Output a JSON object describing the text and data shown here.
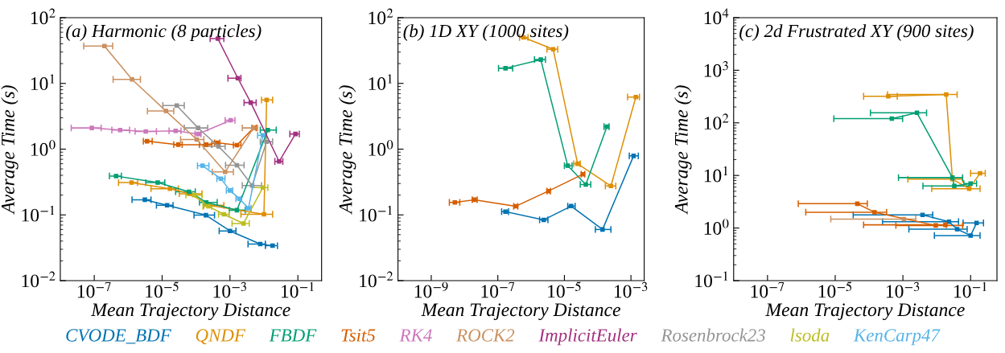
{
  "chart_data": [
    {
      "type": "line",
      "title": "(a) Harmonic (8 particles)",
      "xlabel": "Mean Trajectory Distance",
      "ylabel": "Average Time (s)",
      "log": "xy",
      "marker": "square",
      "line_style": "solid",
      "grid": false,
      "legend": "bottom",
      "xlim": [
        1e-08,
        0.5
      ],
      "ylim": [
        0.01,
        100
      ],
      "xticks": [
        {
          "value": 1e-07,
          "label": "10$^{−7}$"
        },
        {
          "value": 1e-05,
          "label": "10$^{−5}$"
        },
        {
          "value": 0.001,
          "label": "10$^{−3}$"
        },
        {
          "value": 0.1,
          "label": "10$^{−1}$"
        }
      ],
      "yticks": [
        {
          "value": 0.01,
          "label": "10$^{−2}$"
        },
        {
          "value": 0.1,
          "label": "10$^{−1}$"
        },
        {
          "value": 1,
          "label": "10$^{0}$"
        },
        {
          "value": 10,
          "label": "10$^{1}$"
        },
        {
          "value": 100,
          "label": "10$^{2}$"
        }
      ],
      "series": [
        {
          "name": "CVODE_BDF",
          "color": "#0173b2",
          "x": [
            3.1e-06,
            1.4e-05,
            0.000195,
            0.001,
            0.0078,
            0.018
          ],
          "values": [
            0.17,
            0.14,
            0.099,
            0.057,
            0.036,
            0.034
          ],
          "xerrors": [
            [
              1.3e-06,
              4.7e-06
            ],
            [
              6.8e-06,
              2.1e-05
            ],
            [
              8.7e-05,
              0.00035
            ],
            [
              0.00048,
              0.0015
            ],
            [
              0.0034,
              0.011
            ],
            [
              0.011,
              0.025
            ]
          ]
        },
        {
          "name": "QNDF",
          "color": "#de8f05",
          "x": [
            1.26e-06,
            1.7e-05,
            6.6e-05,
            0.00024,
            0.01,
            0.012
          ],
          "values": [
            0.31,
            0.25,
            0.21,
            0.14,
            0.102,
            5.6
          ],
          "xerrors": [
            [
              5.2e-07,
              1.9e-06
            ],
            [
              4.7e-06,
              3e-05
            ],
            [
              3.2e-05,
              0.00015
            ],
            [
              0.00017,
              0.00066
            ],
            [
              0.0021,
              0.018
            ],
            [
              0.0085,
              0.018
            ]
          ]
        },
        {
          "name": "FBDF",
          "color": "#029e73",
          "x": [
            4.4e-07,
            7.4e-06,
            6.2e-05,
            0.0002,
            0.0016,
            0.013
          ],
          "values": [
            0.39,
            0.31,
            0.225,
            0.155,
            0.118,
            1.95
          ],
          "xerrors": [
            [
              2.8e-07,
              6.3e-07
            ],
            [
              3.3e-06,
              1.2e-05
            ],
            [
              2.5e-05,
              9.5e-05
            ],
            [
              0.000126,
              0.00042
            ],
            [
              0.00095,
              0.0028
            ],
            [
              0.0078,
              0.023
            ]
          ]
        },
        {
          "name": "Tsit5",
          "color": "#d55e00",
          "x": [
            3.6e-06,
            3e-05,
            0.0002,
            0.00042,
            0.0016,
            0.0049
          ],
          "values": [
            1.32,
            1.17,
            1.17,
            1.25,
            1.15,
            2.1
          ],
          "xerrors": [
            [
              2.8e-06,
              5.1e-06
            ],
            [
              2.2e-05,
              3.9e-05
            ],
            [
              0.000126,
              0.00029
            ],
            [
              0.00035,
              0.0005
            ],
            [
              0.00126,
              0.0021
            ],
            [
              0.0045,
              0.0059
            ]
          ]
        },
        {
          "name": "RK4",
          "color": "#cc78bc",
          "x": [
            8.5e-08,
            5.8e-07,
            3.3e-06,
            2.5e-05,
            0.000115,
            0.00105
          ],
          "values": [
            2.1,
            1.95,
            1.86,
            1.9,
            1.7,
            2.75
          ],
          "xerrors": [
            [
              2.1e-08,
              1.6e-07
            ],
            [
              3.3e-07,
              1.1e-06
            ],
            [
              1.6e-06,
              6.8e-06
            ],
            [
              1.6e-05,
              3.6e-05
            ],
            [
              9.3e-05,
              0.00014
            ],
            [
              0.00072,
              0.0014
            ]
          ]
        },
        {
          "name": "ROCK2",
          "color": "#ca9161",
          "x": [
            2e-07,
            1.3e-06,
            1.3e-05,
            0.000105,
            0.00072,
            0.0049
          ],
          "values": [
            37,
            11.5,
            3.8,
            1.4,
            0.45,
            2.1
          ],
          "xerrors": [
            [
              4.9e-08,
              3.5e-07
            ],
            [
              3.6e-07,
              2.3e-06
            ],
            [
              3.7e-06,
              2.2e-05
            ],
            [
              3.5e-05,
              0.00017
            ],
            [
              0.0003,
              0.00126
            ],
            [
              0.0023,
              0.0065
            ]
          ]
        },
        {
          "name": "ImplicitEuler",
          "color": "#a2307f",
          "x": [
            0.00044,
            0.0017,
            0.0041,
            0.028,
            0.085
          ],
          "values": [
            48,
            12,
            5.1,
            0.65,
            1.7
          ],
          "xerrors": [
            [
              0.00026,
              0.00066
            ],
            [
              0.00087,
              0.0021
            ],
            [
              0.0026,
              0.0059
            ],
            [
              0.021,
              0.036
            ],
            [
              0.058,
              0.11
            ]
          ]
        },
        {
          "name": "Rosenbrock23",
          "color": "#949494",
          "x": [
            2.7e-05,
            0.000115,
            0.00046,
            0.0016,
            0.0045,
            0.012
          ],
          "values": [
            4.6,
            2.1,
            1.1,
            0.57,
            0.28,
            1.3
          ],
          "xerrors": [
            [
              1.05e-05,
              4.5e-05
            ],
            [
              4.5e-05,
              0.00022
            ],
            [
              0.00017,
              0.00072
            ],
            [
              0.00074,
              0.0026
            ],
            [
              0.0023,
              0.0085
            ],
            [
              0.0078,
              0.018
            ]
          ]
        },
        {
          "name": "lsoda",
          "color": "#bcbd22",
          "x": [
            8.7e-05,
            0.00023,
            0.00066,
            0.0025,
            0.0093
          ],
          "values": [
            0.2,
            0.135,
            0.102,
            0.074,
            0.26
          ],
          "xerrors": [
            [
              5e-05,
              0.00015
            ],
            [
              0.00016,
              0.00029
            ],
            [
              0.00046,
              0.00095
            ],
            [
              0.00115,
              0.0037
            ],
            [
              0.0045,
              0.013
            ]
          ]
        },
        {
          "name": "KenCarp47",
          "color": "#56b4e9",
          "x": [
            0.000155,
            0.00054,
            0.001,
            0.0019,
            0.0035,
            0.0093
          ],
          "values": [
            0.56,
            0.355,
            0.235,
            0.176,
            0.126,
            1.62
          ],
          "xerrors": [
            [
              0.00011,
              0.00024
            ],
            [
              0.00041,
              0.00071
            ],
            [
              0.00078,
              0.0012
            ],
            [
              0.0015,
              0.0022
            ],
            [
              0.0029,
              0.0042
            ],
            [
              0.0065,
              0.012
            ]
          ]
        }
      ]
    },
    {
      "type": "line",
      "title": "(b) 1D XY (1000 sites)",
      "xlabel": "Mean Trajectory Distance",
      "ylabel": "Average Time (s)",
      "log": "xy",
      "marker": "square",
      "line_style": "solid",
      "grid": false,
      "xlim": [
        1e-10,
        0.0025
      ],
      "ylim": [
        0.01,
        100
      ],
      "xticks": [
        {
          "value": 1e-09,
          "label": "10$^{−9}$"
        },
        {
          "value": 1e-07,
          "label": "10$^{−7}$"
        },
        {
          "value": 1e-05,
          "label": "10$^{−5}$"
        },
        {
          "value": 0.001,
          "label": "10$^{−3}$"
        }
      ],
      "yticks": [
        {
          "value": 0.01,
          "label": "10$^{−2}$"
        },
        {
          "value": 0.1,
          "label": "10$^{−1}$"
        },
        {
          "value": 1,
          "label": "10$^{0}$"
        },
        {
          "value": 10,
          "label": "10$^{1}$"
        },
        {
          "value": 100,
          "label": "10$^{2}$"
        }
      ],
      "series": [
        {
          "color": "#0173b2",
          "x": [
            1.7e-07,
            2.4e-06,
            1.6e-05,
            0.00014,
            0.0012
          ],
          "values": [
            0.112,
            0.084,
            0.136,
            0.06,
            0.79
          ],
          "xerrors": [
            [
              1.3e-07,
              2.1e-07
            ],
            [
              1.8e-06,
              3.2e-06
            ],
            [
              1.26e-05,
              2.1e-05
            ],
            [
              8.5e-05,
              0.00025
            ],
            [
              0.00089,
              0.00166
            ]
          ]
        },
        {
          "color": "#de8f05",
          "x": [
            5.9e-07,
            4.6e-06,
            2.5e-05,
            0.00025,
            0.0014
          ],
          "values": [
            50,
            33,
            0.6,
            0.275,
            6.2
          ],
          "xerrors": [
            [
              4.5e-07,
              8.1e-07
            ],
            [
              3e-06,
              6.3e-06
            ],
            [
              1.9e-05,
              3e-05
            ],
            [
              0.00017,
              0.00035
            ],
            [
              0.00079,
              0.0018
            ]
          ]
        },
        {
          "color": "#029e73",
          "x": [
            1.7e-07,
            1.95e-06,
            1.26e-05,
            4.4e-05,
            0.00019
          ],
          "values": [
            17,
            23,
            0.56,
            0.29,
            2.2
          ],
          "xerrors": [
            [
              1.05e-07,
              2.8e-07
            ],
            [
              1.26e-06,
              2.7e-06
            ],
            [
              1e-05,
              1.7e-05
            ],
            [
              3e-05,
              6.2e-05
            ],
            [
              0.000155,
              0.00022
            ]
          ]
        },
        {
          "color": "#d55e00",
          "x": [
            5.1e-09,
            2e-08,
            3.4e-07,
            3.3e-06,
            3.6e-05
          ],
          "values": [
            0.155,
            0.17,
            0.135,
            0.23,
            0.415
          ],
          "xerrors": [
            [
              3.5e-09,
              7.2e-09
            ],
            [
              1.7e-08,
              2.4e-08
            ],
            [
              3e-07,
              4e-07
            ],
            [
              3e-06,
              3.8e-06
            ],
            [
              3.2e-05,
              4.1e-05
            ]
          ]
        }
      ]
    },
    {
      "type": "line",
      "title": "(c) 2d Frustrated XY (900 sites)",
      "xlabel": "Mean Trajectory Distance",
      "ylabel": "Average Time (s)",
      "log": "xy",
      "marker": "square",
      "line_style": "solid",
      "grid": false,
      "xlim": [
        1e-08,
        0.6
      ],
      "ylim": [
        0.1,
        10000
      ],
      "xticks": [
        {
          "value": 1e-07,
          "label": "10$^{−7}$"
        },
        {
          "value": 1e-05,
          "label": "10$^{−5}$"
        },
        {
          "value": 0.001,
          "label": "10$^{−3}$"
        },
        {
          "value": 0.1,
          "label": "10$^{−1}$"
        }
      ],
      "yticks": [
        {
          "value": 0.1,
          "label": "10$^{−1}$"
        },
        {
          "value": 1,
          "label": "10$^{0}$"
        },
        {
          "value": 10,
          "label": "10$^{1}$"
        },
        {
          "value": 100,
          "label": "10$^{2}$"
        },
        {
          "value": 1000,
          "label": "10$^{3}$"
        },
        {
          "value": 10000,
          "label": "10$^{4}$"
        }
      ],
      "series": [
        {
          "color": "#0173b2",
          "x": [
            0.0038,
            0.023,
            0.04,
            0.1,
            0.15
          ],
          "values": [
            1.78,
            1.32,
            0.95,
            0.72,
            1.25
          ],
          "xerrors": [
            [
              3.4e-05,
              0.0076
            ],
            [
              0.00025,
              0.044
            ],
            [
              0.0015,
              0.079
            ],
            [
              0.0085,
              0.19
            ],
            [
              0.06,
              0.24
            ]
          ]
        },
        {
          "color": "#de8f05",
          "x": [
            0.00037,
            0.019,
            0.029,
            0.091,
            0.19
          ],
          "values": [
            320,
            345,
            8.5,
            5.6,
            11
          ],
          "xerrors": [
            [
              6.9e-05,
              0.00068
            ],
            [
              0.00035,
              0.04
            ],
            [
              0.0014,
              0.058
            ],
            [
              0.0071,
              0.19
            ],
            [
              0.1,
              0.27
            ]
          ]
        },
        {
          "color": "#029e73",
          "x": [
            0.00047,
            0.0026,
            0.029,
            0.033,
            0.1
          ],
          "values": [
            120,
            155,
            9.1,
            6.3,
            7.0
          ],
          "xerrors": [
            [
              9.1e-06,
              0.00098
            ],
            [
              0.00011,
              0.005
            ],
            [
              0.00074,
              0.058
            ],
            [
              0.0039,
              0.091
            ],
            [
              0.063,
              0.15
            ]
          ]
        },
        {
          "color": "#d55e00",
          "x": [
            4.5e-05,
            0.000145,
            0.0093,
            0.018
          ],
          "values": [
            2.9,
            2.0,
            1.12,
            1.15
          ],
          "xerrors": [
            [
              8.1e-07,
              8.9e-05
            ],
            [
              1.35e-06,
              0.00033
            ],
            [
              0.00062,
              0.058
            ],
            [
              6.9e-05,
              0.019
            ]
          ]
        },
        {
          "color": "#ca9161",
          "x": [
            0.00107
          ],
          "values": [
            1.48
          ],
          "xerrors": [
            [
              7.4e-06,
              0.0024
            ]
          ]
        }
      ]
    }
  ]
}
